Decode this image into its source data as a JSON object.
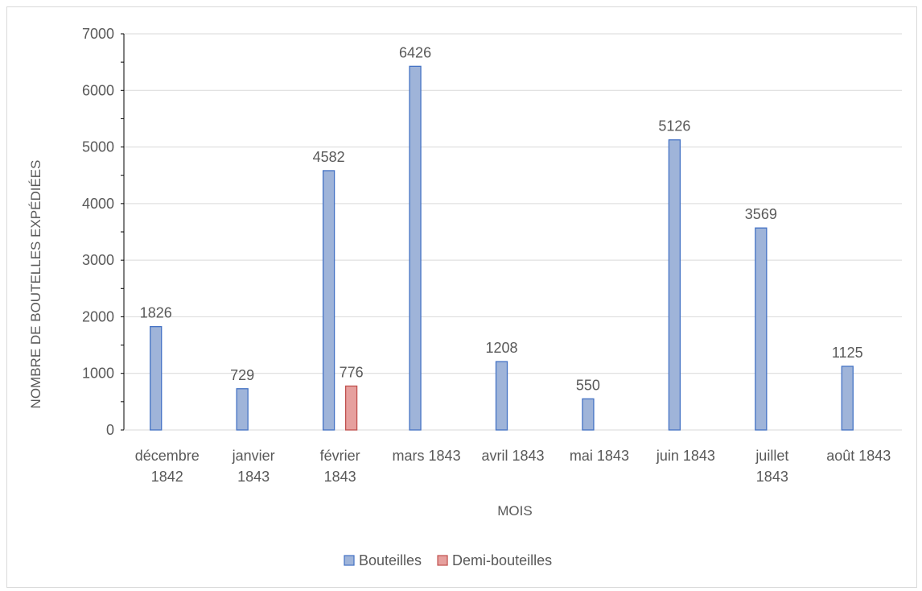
{
  "chart_data": {
    "type": "bar",
    "title": "",
    "xlabel": "MOIS",
    "ylabel": "NOMBRE DE BOUTELLES EXPÉDIÉES",
    "ylim": [
      0,
      7000
    ],
    "yticks": [
      0,
      1000,
      2000,
      3000,
      4000,
      5000,
      6000,
      7000
    ],
    "grid": true,
    "legend_position": "bottom",
    "categories": [
      [
        "décembre",
        "1842"
      ],
      [
        "janvier",
        "1843"
      ],
      [
        "février",
        "1843"
      ],
      [
        "mars 1843"
      ],
      [
        "avril 1843"
      ],
      [
        "mai 1843"
      ],
      [
        "juin 1843"
      ],
      [
        "juillet",
        "1843"
      ],
      [
        "août 1843"
      ]
    ],
    "series": [
      {
        "name": "Bouteilles",
        "color": "#9fb4d9",
        "stroke": "#4472c4",
        "values": [
          1826,
          729,
          4582,
          6426,
          1208,
          550,
          5126,
          3569,
          1125
        ]
      },
      {
        "name": "Demi-bouteilles",
        "color": "#e6a09e",
        "stroke": "#c0504d",
        "values": [
          null,
          null,
          776,
          null,
          null,
          null,
          null,
          null,
          null
        ]
      }
    ]
  }
}
